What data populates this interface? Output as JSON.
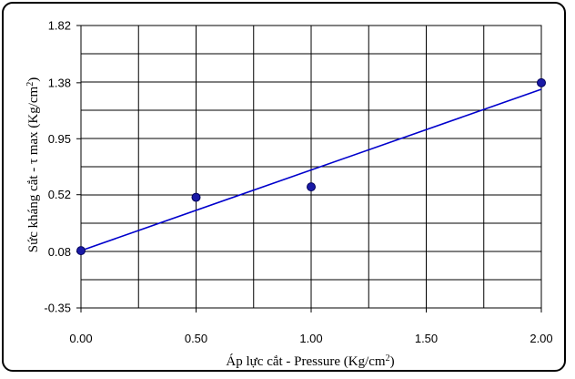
{
  "chart_data": {
    "type": "scatter",
    "xlabel": "Áp lực cắt - Pressure (Kg/cm",
    "xlabel_sup": "2",
    "xlabel_end": ")",
    "ylabel": "Sức kháng cắt -  τ max (Kg/cm",
    "ylabel_sup": "2",
    "ylabel_end": ")",
    "xlim": [
      0,
      2
    ],
    "ylim": [
      -0.35,
      1.82
    ],
    "x_ticks": [
      "0.00",
      "0.50",
      "1.00",
      "1.50",
      "2.00"
    ],
    "x_tick_values": [
      0,
      0.5,
      1,
      1.5,
      2
    ],
    "y_ticks": [
      "1.82",
      "1.38",
      "0.95",
      "0.52",
      "0.08",
      "-0.35"
    ],
    "y_tick_values": [
      1.82,
      1.38,
      0.95,
      0.52,
      0.08,
      -0.35
    ],
    "x_grid_divisions": 8,
    "y_grid_divisions": 10,
    "grid": true,
    "series": [
      {
        "points": [
          {
            "x": 0.0,
            "y": 0.09
          },
          {
            "x": 0.5,
            "y": 0.5
          },
          {
            "x": 1.0,
            "y": 0.58
          },
          {
            "x": 2.0,
            "y": 1.38
          }
        ],
        "color": "#1a1aa6"
      }
    ],
    "trendline": {
      "x": [
        0,
        2
      ],
      "y": [
        0.09,
        1.33
      ],
      "color": "#0000cc"
    }
  }
}
